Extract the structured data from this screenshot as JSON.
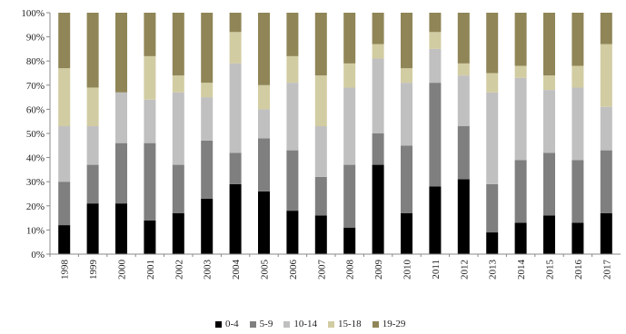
{
  "chart_data": {
    "type": "bar",
    "stacked": true,
    "percent": true,
    "title": "",
    "xlabel": "",
    "ylabel": "",
    "ylim": [
      0,
      100
    ],
    "yticks": [
      "0%",
      "10%",
      "20%",
      "30%",
      "40%",
      "50%",
      "60%",
      "70%",
      "80%",
      "90%",
      "100%"
    ],
    "categories": [
      "1998",
      "1999",
      "2000",
      "2001",
      "2002",
      "2003",
      "2004",
      "2005",
      "2006",
      "2007",
      "2008",
      "2009",
      "2010",
      "2011",
      "2012",
      "2013",
      "2014",
      "2015",
      "2016",
      "2017"
    ],
    "series": [
      {
        "name": "0-4",
        "color": "#000000",
        "values": [
          12,
          21,
          21,
          14,
          17,
          23,
          29,
          26,
          18,
          16,
          11,
          37,
          17,
          28,
          31,
          9,
          13,
          16,
          13,
          17
        ]
      },
      {
        "name": "5-9",
        "color": "#7f7f7f",
        "values": [
          18,
          16,
          25,
          32,
          20,
          24,
          13,
          22,
          25,
          16,
          26,
          13,
          28,
          43,
          22,
          20,
          26,
          26,
          26,
          26
        ]
      },
      {
        "name": "10-14",
        "color": "#c0c0c0",
        "values": [
          23,
          16,
          21,
          18,
          30,
          18,
          37,
          12,
          28,
          21,
          32,
          31,
          26,
          14,
          21,
          38,
          34,
          26,
          30,
          18
        ]
      },
      {
        "name": "15-18",
        "color": "#d2cca2",
        "values": [
          24,
          16,
          0,
          18,
          7,
          6,
          13,
          10,
          11,
          21,
          10,
          6,
          6,
          7,
          5,
          8,
          5,
          6,
          9,
          26
        ]
      },
      {
        "name": "19-29",
        "color": "#8f8557",
        "values": [
          23,
          31,
          33,
          18,
          26,
          29,
          8,
          30,
          18,
          26,
          21,
          13,
          23,
          8,
          21,
          25,
          22,
          26,
          22,
          13
        ]
      }
    ],
    "legend_position": "bottom",
    "grid": false
  }
}
